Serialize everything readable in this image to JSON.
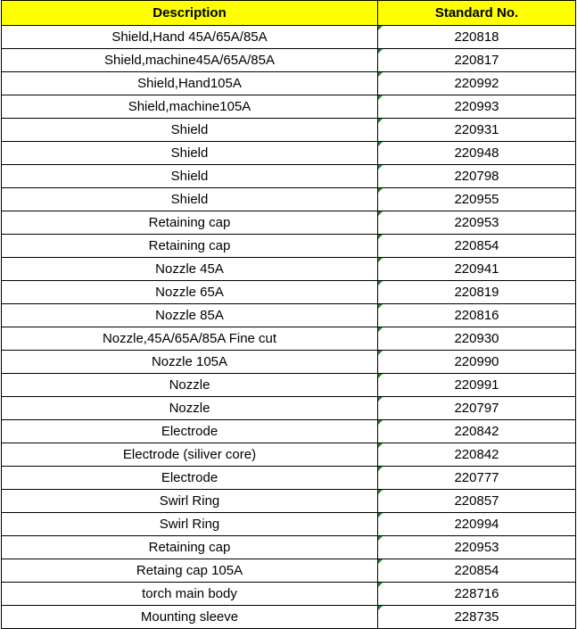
{
  "table": {
    "headers": [
      "Description",
      "Standard No."
    ],
    "header_color": "#ffff00",
    "rows": [
      [
        "Shield,Hand 45A/65A/85A",
        "220818"
      ],
      [
        "Shield,machine45A/65A/85A",
        "220817"
      ],
      [
        "Shield,Hand105A",
        "220992"
      ],
      [
        "Shield,machine105A",
        "220993"
      ],
      [
        "Shield",
        "220931"
      ],
      [
        "Shield",
        "220948"
      ],
      [
        "Shield",
        "220798"
      ],
      [
        "Shield",
        "220955"
      ],
      [
        "Retaining cap",
        "220953"
      ],
      [
        "Retaining cap",
        "220854"
      ],
      [
        "Nozzle 45A",
        "220941"
      ],
      [
        "Nozzle 65A",
        "220819"
      ],
      [
        "Nozzle 85A",
        "220816"
      ],
      [
        "Nozzle,45A/65A/85A Fine cut",
        "220930"
      ],
      [
        "Nozzle 105A",
        "220990"
      ],
      [
        "Nozzle",
        "220991"
      ],
      [
        "Nozzle",
        "220797"
      ],
      [
        "Electrode",
        "220842"
      ],
      [
        "Electrode (siliver core)",
        "220842"
      ],
      [
        "Electrode",
        "220777"
      ],
      [
        "Swirl Ring",
        "220857"
      ],
      [
        "Swirl Ring",
        "220994"
      ],
      [
        "Retaining cap",
        "220953"
      ],
      [
        "Retaing cap 105A",
        "220854"
      ],
      [
        "torch main body",
        "228716"
      ],
      [
        "Mounting sleeve",
        "228735"
      ]
    ]
  }
}
